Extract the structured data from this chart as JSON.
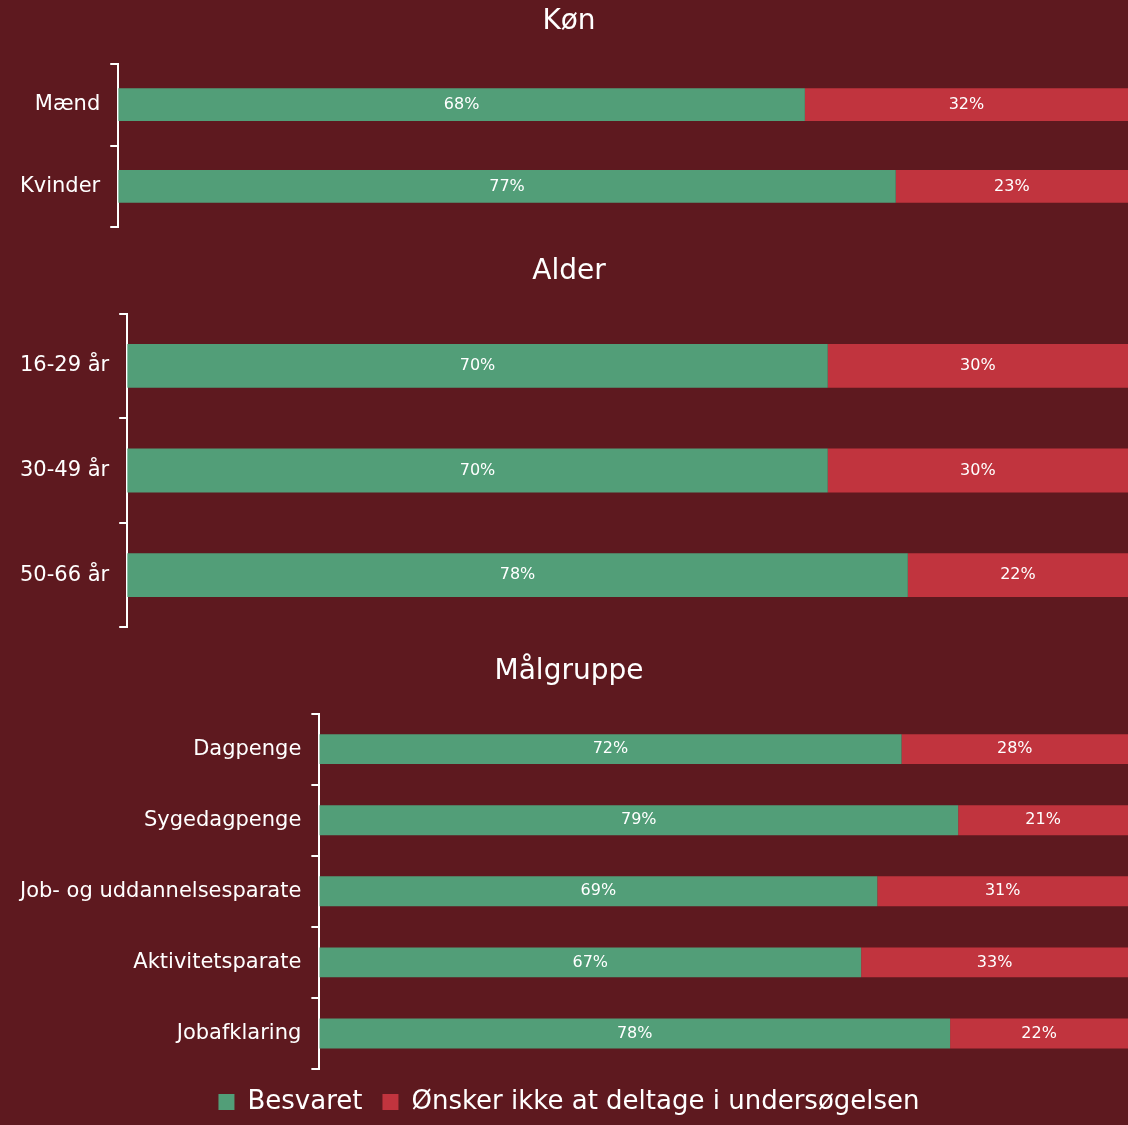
{
  "chart_data": [
    {
      "type": "bar",
      "orientation": "horizontal",
      "stacked": true,
      "title": "Køn",
      "categories": [
        "Mænd",
        "Kvinder"
      ],
      "series": [
        {
          "color": "#529e78",
          "values": [
            68,
            77
          ],
          "value_labels": [
            "68%",
            "77%"
          ]
        },
        {
          "color": "#c1343e",
          "values": [
            32,
            23
          ],
          "value_labels": [
            "32%",
            "23%"
          ]
        }
      ],
      "legend": false
    },
    {
      "type": "bar",
      "orientation": "horizontal",
      "stacked": true,
      "title": "Alder",
      "categories": [
        "16-29 år",
        "30-49 år",
        "50-66 år"
      ],
      "series": [
        {
          "color": "#529e78",
          "values": [
            70,
            70,
            78
          ],
          "value_labels": [
            "70%",
            "70%",
            "78%"
          ]
        },
        {
          "color": "#c1343e",
          "values": [
            30,
            30,
            22
          ],
          "value_labels": [
            "30%",
            "30%",
            "22%"
          ]
        }
      ],
      "legend": false
    },
    {
      "type": "bar",
      "orientation": "horizontal",
      "stacked": true,
      "title": "Målgruppe",
      "categories": [
        "Dagpenge",
        "Sygedagpenge",
        "Job- og uddannelsesparate",
        "Aktivitetsparate",
        "Jobafklaring"
      ],
      "series": [
        {
          "name": "Besvaret",
          "color": "#529e78",
          "values": [
            72,
            79,
            69,
            67,
            78
          ],
          "value_labels": [
            "72%",
            "79%",
            "69%",
            "67%",
            "78%"
          ]
        },
        {
          "name": "Ønsker ikke at deltage i undersøgelsen",
          "color": "#c1343e",
          "values": [
            28,
            21,
            31,
            33,
            22
          ],
          "value_labels": [
            "28%",
            "21%",
            "31%",
            "33%",
            "22%"
          ]
        }
      ],
      "legend": "bottom"
    }
  ]
}
